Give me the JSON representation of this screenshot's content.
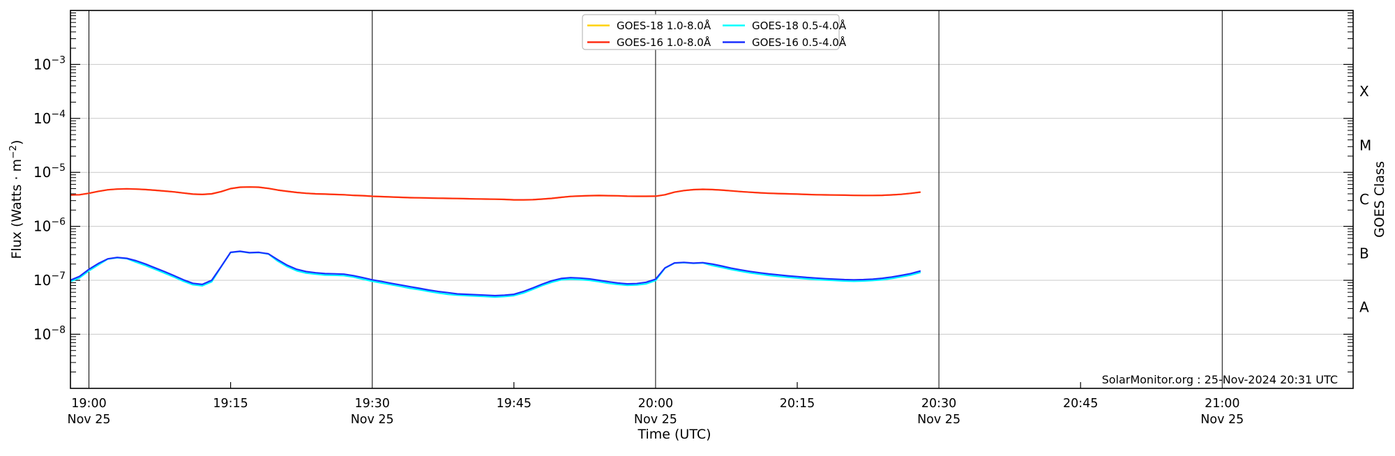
{
  "figure": {
    "watermark": "SolarMonitor.org : 25-Nov-2024 20:31 UTC",
    "background": "#ffffff"
  },
  "chart_data": {
    "type": "line",
    "title": "",
    "xlabel": "Time (UTC)",
    "ylabel": {
      "text": "Flux (Watts · m",
      "sup": "−2",
      "end": ")"
    },
    "ylabel_right": "GOES Class",
    "colors": {
      "grid": "#c8c8c8",
      "time_gridline": "#000000",
      "frame": "#000000"
    },
    "x_axis": {
      "unit": "minutes after 19:00 UTC on Nov 25",
      "range_minutes": [
        -1.96,
        133.9
      ],
      "ticks": [
        {
          "minutes": 0,
          "label": "19:00",
          "sub": true
        },
        {
          "minutes": 15,
          "label": "19:15",
          "sub": false
        },
        {
          "minutes": 30,
          "label": "19:30",
          "sub": true
        },
        {
          "minutes": 45,
          "label": "19:45",
          "sub": false
        },
        {
          "minutes": 60,
          "label": "20:00",
          "sub": true
        },
        {
          "minutes": 75,
          "label": "20:15",
          "sub": false
        },
        {
          "minutes": 90,
          "label": "20:30",
          "sub": true
        },
        {
          "minutes": 105,
          "label": "20:45",
          "sub": false
        },
        {
          "minutes": 120,
          "label": "21:00",
          "sub": true
        }
      ],
      "date_sublabel": "Nov 25",
      "major_gridline_minutes": [
        0,
        30,
        60,
        90,
        120
      ],
      "minor_tick_minutes": [
        15,
        45,
        75,
        105
      ]
    },
    "y_axis": {
      "scale": "log",
      "top": 0.01,
      "bottom": 1e-09,
      "labeled_exponents": [
        -3,
        -4,
        -5,
        -6,
        -7,
        -8
      ]
    },
    "goes_classes": [
      {
        "label": "X",
        "exponent": -3.5
      },
      {
        "label": "M",
        "exponent": -4.5
      },
      {
        "label": "C",
        "exponent": -5.5
      },
      {
        "label": "B",
        "exponent": -6.5
      },
      {
        "label": "A",
        "exponent": -7.5
      }
    ],
    "legend": {
      "entries": [
        {
          "label": "GOES-18 1.0-8.0Å",
          "color": "#ffd20a"
        },
        {
          "label": "GOES-16 1.0-8.0Å",
          "color": "#ff2d14"
        },
        {
          "label": "GOES-18 0.5-4.0Å",
          "color": "#00ffff"
        },
        {
          "label": "GOES-16 0.5-4.0Å",
          "color": "#1a2fff"
        }
      ]
    },
    "t_minutes": [
      -2,
      -1,
      0,
      1,
      2,
      3,
      4,
      5,
      6,
      7,
      8,
      9,
      10,
      11,
      12,
      13,
      14,
      15,
      16,
      17,
      18,
      19,
      20,
      21,
      22,
      23,
      24,
      25,
      26,
      27,
      28,
      29,
      30,
      31,
      32,
      33,
      34,
      35,
      36,
      37,
      38,
      39,
      40,
      41,
      42,
      43,
      44,
      45,
      46,
      47,
      48,
      49,
      50,
      51,
      52,
      53,
      54,
      55,
      56,
      57,
      58,
      59,
      60,
      61,
      62,
      63,
      64,
      65,
      66,
      67,
      68,
      69,
      70,
      71,
      72,
      73,
      74,
      75,
      76,
      77,
      78,
      79,
      80,
      81,
      82,
      83,
      84,
      85,
      86,
      87,
      88
    ],
    "series": [
      {
        "name": "GOES-18 1.0-8.0Å",
        "color": "#ffd20a",
        "values": [
          3.8e-06,
          3.85e-06,
          4.1e-06,
          4.45e-06,
          4.75e-06,
          4.9e-06,
          4.95e-06,
          4.9e-06,
          4.8e-06,
          4.65e-06,
          4.5e-06,
          4.35e-06,
          4.15e-06,
          3.95e-06,
          3.9e-06,
          4e-06,
          4.4e-06,
          5e-06,
          5.3e-06,
          5.35e-06,
          5.3e-06,
          5.05e-06,
          4.7e-06,
          4.45e-06,
          4.25e-06,
          4.1e-06,
          4e-06,
          3.95e-06,
          3.9e-06,
          3.85e-06,
          3.75e-06,
          3.7e-06,
          3.6e-06,
          3.55e-06,
          3.5e-06,
          3.45e-06,
          3.4e-06,
          3.38e-06,
          3.35e-06,
          3.32e-06,
          3.3e-06,
          3.28e-06,
          3.25e-06,
          3.22e-06,
          3.2e-06,
          3.18e-06,
          3.15e-06,
          3.1e-06,
          3.1e-06,
          3.12e-06,
          3.2e-06,
          3.3e-06,
          3.45e-06,
          3.58e-06,
          3.65e-06,
          3.7e-06,
          3.72e-06,
          3.7e-06,
          3.68e-06,
          3.62e-06,
          3.6e-06,
          3.6e-06,
          3.62e-06,
          3.85e-06,
          4.3e-06,
          4.6e-06,
          4.78e-06,
          4.85e-06,
          4.8e-06,
          4.7e-06,
          4.55e-06,
          4.4e-06,
          4.28e-06,
          4.18e-06,
          4.1e-06,
          4.05e-06,
          4e-06,
          3.95e-06,
          3.9e-06,
          3.85e-06,
          3.82e-06,
          3.8e-06,
          3.78e-06,
          3.75e-06,
          3.74e-06,
          3.74e-06,
          3.76e-06,
          3.82e-06,
          3.92e-06,
          4.08e-06,
          4.3e-06
        ]
      },
      {
        "name": "GOES-18 0.5-4.0Å",
        "color": "#00ffff",
        "values": [
          9.4e-08,
          1.11e-07,
          1.5e-07,
          1.93e-07,
          2.48e-07,
          2.62e-07,
          2.52e-07,
          2.16e-07,
          1.88e-07,
          1.6e-07,
          1.36e-07,
          1.15e-07,
          9.6e-08,
          8.3e-08,
          7.9e-08,
          9.4e-08,
          1.78e-07,
          3.27e-07,
          3.42e-07,
          3.22e-07,
          3.27e-07,
          3.07e-07,
          2.26e-07,
          1.79e-07,
          1.5e-07,
          1.36e-07,
          1.3e-07,
          1.25e-07,
          1.24e-07,
          1.22e-07,
          1.15e-07,
          1.05e-07,
          9.6e-08,
          8.9e-08,
          8.3e-08,
          7.7e-08,
          7.1e-08,
          6.7e-08,
          6.2e-08,
          5.8e-08,
          5.5e-08,
          5.3e-08,
          5.2e-08,
          5.1e-08,
          5e-08,
          4.9e-08,
          5e-08,
          5.2e-08,
          5.8e-08,
          6.8e-08,
          8e-08,
          9.2e-08,
          1.02e-07,
          1.05e-07,
          1.03e-07,
          1e-07,
          9.4e-08,
          8.8e-08,
          8.4e-08,
          8.1e-08,
          8.2e-08,
          8.6e-08,
          9.9e-08,
          1.68e-07,
          2.08e-07,
          2.13e-07,
          2.06e-07,
          2.1e-07,
          1.88e-07,
          1.73e-07,
          1.58e-07,
          1.47e-07,
          1.37e-07,
          1.3e-07,
          1.23e-07,
          1.18e-07,
          1.14e-07,
          1.1e-07,
          1.06e-07,
          1.03e-07,
          1.01e-07,
          9.9e-08,
          9.7e-08,
          9.6e-08,
          9.7e-08,
          9.9e-08,
          1.02e-07,
          1.08e-07,
          1.16e-07,
          1.25e-07,
          1.39e-07
        ]
      },
      {
        "name": "GOES-16 0.5-4.0Å",
        "color": "#1a2fff",
        "values": [
          1e-07,
          1.18e-07,
          1.6e-07,
          2.05e-07,
          2.5e-07,
          2.65e-07,
          2.55e-07,
          2.3e-07,
          2e-07,
          1.7e-07,
          1.45e-07,
          1.22e-07,
          1.02e-07,
          8.8e-08,
          8.4e-08,
          1e-07,
          1.8e-07,
          3.3e-07,
          3.45e-07,
          3.25e-07,
          3.3e-07,
          3.1e-07,
          2.4e-07,
          1.9e-07,
          1.6e-07,
          1.45e-07,
          1.38e-07,
          1.33e-07,
          1.32e-07,
          1.3e-07,
          1.22e-07,
          1.12e-07,
          1.02e-07,
          9.5e-08,
          8.8e-08,
          8.2e-08,
          7.6e-08,
          7.1e-08,
          6.6e-08,
          6.2e-08,
          5.9e-08,
          5.6e-08,
          5.5e-08,
          5.4e-08,
          5.3e-08,
          5.2e-08,
          5.3e-08,
          5.5e-08,
          6.2e-08,
          7.2e-08,
          8.5e-08,
          9.8e-08,
          1.08e-07,
          1.12e-07,
          1.1e-07,
          1.06e-07,
          1e-07,
          9.4e-08,
          8.9e-08,
          8.6e-08,
          8.7e-08,
          9.2e-08,
          1.05e-07,
          1.7e-07,
          2.1e-07,
          2.15e-07,
          2.08e-07,
          2.12e-07,
          2e-07,
          1.84e-07,
          1.68e-07,
          1.56e-07,
          1.46e-07,
          1.38e-07,
          1.31e-07,
          1.26e-07,
          1.21e-07,
          1.17e-07,
          1.13e-07,
          1.1e-07,
          1.07e-07,
          1.05e-07,
          1.03e-07,
          1.02e-07,
          1.03e-07,
          1.05e-07,
          1.09e-07,
          1.15e-07,
          1.23e-07,
          1.33e-07,
          1.48e-07
        ]
      },
      {
        "name": "GOES-16 1.0-8.0Å",
        "color": "#ff2d14",
        "values": [
          3.8e-06,
          3.85e-06,
          4.1e-06,
          4.45e-06,
          4.75e-06,
          4.9e-06,
          4.95e-06,
          4.9e-06,
          4.8e-06,
          4.65e-06,
          4.5e-06,
          4.35e-06,
          4.15e-06,
          3.95e-06,
          3.9e-06,
          4e-06,
          4.4e-06,
          5e-06,
          5.3e-06,
          5.35e-06,
          5.3e-06,
          5.05e-06,
          4.7e-06,
          4.45e-06,
          4.25e-06,
          4.1e-06,
          4e-06,
          3.95e-06,
          3.9e-06,
          3.85e-06,
          3.75e-06,
          3.7e-06,
          3.6e-06,
          3.55e-06,
          3.5e-06,
          3.45e-06,
          3.4e-06,
          3.38e-06,
          3.35e-06,
          3.32e-06,
          3.3e-06,
          3.28e-06,
          3.25e-06,
          3.22e-06,
          3.2e-06,
          3.18e-06,
          3.15e-06,
          3.1e-06,
          3.1e-06,
          3.12e-06,
          3.2e-06,
          3.3e-06,
          3.45e-06,
          3.58e-06,
          3.65e-06,
          3.7e-06,
          3.72e-06,
          3.7e-06,
          3.68e-06,
          3.62e-06,
          3.6e-06,
          3.6e-06,
          3.62e-06,
          3.85e-06,
          4.3e-06,
          4.6e-06,
          4.78e-06,
          4.85e-06,
          4.8e-06,
          4.7e-06,
          4.55e-06,
          4.4e-06,
          4.28e-06,
          4.18e-06,
          4.1e-06,
          4.05e-06,
          4e-06,
          3.95e-06,
          3.9e-06,
          3.85e-06,
          3.82e-06,
          3.8e-06,
          3.78e-06,
          3.75e-06,
          3.74e-06,
          3.74e-06,
          3.76e-06,
          3.82e-06,
          3.92e-06,
          4.08e-06,
          4.3e-06
        ]
      }
    ]
  }
}
